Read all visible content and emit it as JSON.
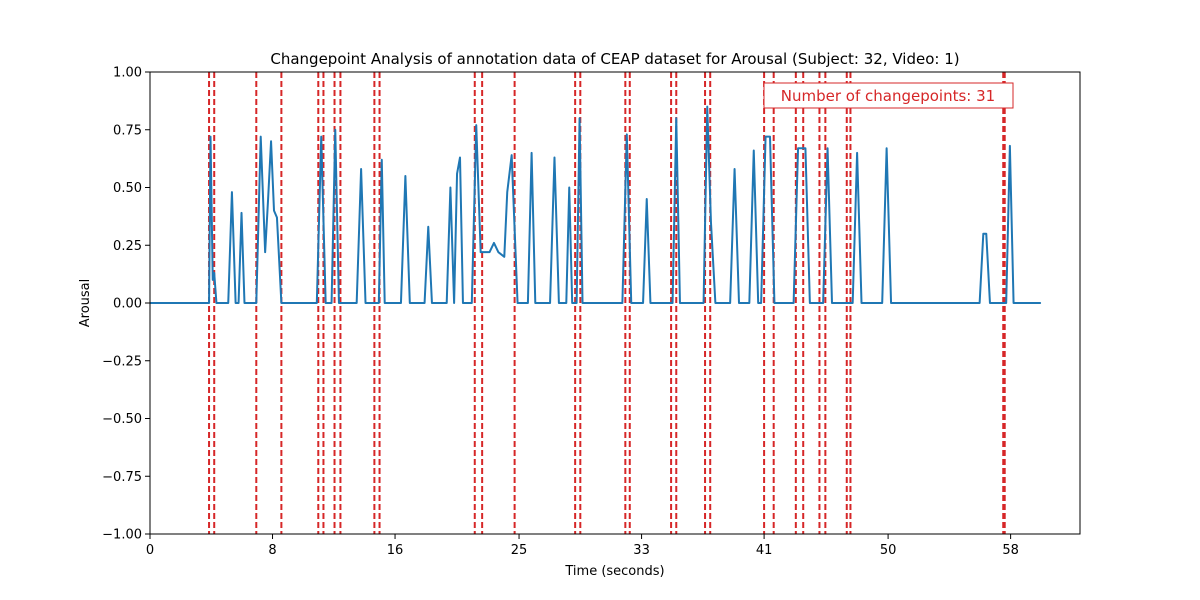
{
  "chart_data": {
    "type": "line",
    "title": "Changepoint Analysis of annotation data of CEAP dataset for Arousal (Subject: 32, Video: 1)",
    "xlabel": "Time (seconds)",
    "ylabel": "Arousal",
    "xlim": [
      0,
      63
    ],
    "ylim": [
      -1.0,
      1.0
    ],
    "x_ticks": [
      0,
      8.3,
      16.6,
      25.0,
      33.3,
      41.6,
      50.0,
      58.3
    ],
    "x_tick_labels": [
      "0",
      "8",
      "16",
      "25",
      "33",
      "41",
      "50",
      "58"
    ],
    "y_ticks": [
      -1.0,
      -0.75,
      -0.5,
      -0.25,
      0.0,
      0.25,
      0.5,
      0.75,
      1.0
    ],
    "y_tick_labels": [
      "−1.00",
      "−0.75",
      "−0.50",
      "−0.25",
      "0.00",
      "0.25",
      "0.50",
      "0.75",
      "1.00"
    ],
    "grid": false,
    "series": [
      {
        "color": "#1f77b4",
        "points": [
          [
            0,
            0
          ],
          [
            4.0,
            0
          ],
          [
            4.1,
            0.72
          ],
          [
            4.25,
            0.1
          ],
          [
            4.35,
            0.13
          ],
          [
            4.5,
            0
          ],
          [
            5.3,
            0
          ],
          [
            5.55,
            0.48
          ],
          [
            5.8,
            0
          ],
          [
            6.0,
            0
          ],
          [
            6.2,
            0.39
          ],
          [
            6.4,
            0
          ],
          [
            7.2,
            0
          ],
          [
            7.5,
            0.72
          ],
          [
            7.8,
            0.22
          ],
          [
            8.0,
            0.45
          ],
          [
            8.2,
            0.7
          ],
          [
            8.4,
            0.4
          ],
          [
            8.6,
            0.37
          ],
          [
            8.9,
            0
          ],
          [
            11.3,
            0
          ],
          [
            11.6,
            0.72
          ],
          [
            11.9,
            0
          ],
          [
            12.3,
            0
          ],
          [
            12.55,
            0.75
          ],
          [
            12.8,
            0
          ],
          [
            14.0,
            0
          ],
          [
            14.3,
            0.58
          ],
          [
            14.6,
            0
          ],
          [
            15.5,
            0
          ],
          [
            15.7,
            0.62
          ],
          [
            15.9,
            0
          ],
          [
            17.0,
            0
          ],
          [
            17.3,
            0.55
          ],
          [
            17.6,
            0
          ],
          [
            18.6,
            0
          ],
          [
            18.85,
            0.33
          ],
          [
            19.1,
            0
          ],
          [
            20.1,
            0
          ],
          [
            20.35,
            0.5
          ],
          [
            20.6,
            0
          ],
          [
            20.8,
            0.56
          ],
          [
            21.0,
            0.63
          ],
          [
            21.2,
            0
          ],
          [
            21.8,
            0
          ],
          [
            22.1,
            0.77
          ],
          [
            22.4,
            0.22
          ],
          [
            23.0,
            0.22
          ],
          [
            23.3,
            0.26
          ],
          [
            23.6,
            0.22
          ],
          [
            24.0,
            0.2
          ],
          [
            24.2,
            0.48
          ],
          [
            24.5,
            0.64
          ],
          [
            24.9,
            0
          ],
          [
            25.6,
            0
          ],
          [
            25.85,
            0.65
          ],
          [
            26.1,
            0
          ],
          [
            27.1,
            0
          ],
          [
            27.4,
            0.63
          ],
          [
            27.7,
            0
          ],
          [
            28.2,
            0
          ],
          [
            28.4,
            0.5
          ],
          [
            28.6,
            0
          ],
          [
            28.9,
            0
          ],
          [
            29.1,
            0.8
          ],
          [
            29.3,
            0
          ],
          [
            32.0,
            0
          ],
          [
            32.3,
            0.73
          ],
          [
            32.6,
            0
          ],
          [
            33.4,
            0
          ],
          [
            33.65,
            0.45
          ],
          [
            33.9,
            0
          ],
          [
            35.4,
            0
          ],
          [
            35.65,
            0.8
          ],
          [
            35.9,
            0
          ],
          [
            37.5,
            0
          ],
          [
            37.75,
            0.85
          ],
          [
            38.0,
            0.35
          ],
          [
            38.3,
            0
          ],
          [
            39.3,
            0
          ],
          [
            39.6,
            0.58
          ],
          [
            39.9,
            0
          ],
          [
            40.6,
            0
          ],
          [
            40.9,
            0.66
          ],
          [
            41.2,
            0
          ],
          [
            41.4,
            0
          ],
          [
            41.7,
            0.72
          ],
          [
            42.0,
            0.72
          ],
          [
            42.3,
            0
          ],
          [
            43.6,
            0
          ],
          [
            43.9,
            0.67
          ],
          [
            44.4,
            0.67
          ],
          [
            44.7,
            0
          ],
          [
            45.6,
            0
          ],
          [
            45.9,
            0.67
          ],
          [
            46.2,
            0
          ],
          [
            47.6,
            0
          ],
          [
            47.9,
            0.65
          ],
          [
            48.2,
            0
          ],
          [
            49.6,
            0
          ],
          [
            49.9,
            0.67
          ],
          [
            50.2,
            0
          ],
          [
            56.2,
            0
          ],
          [
            56.45,
            0.3
          ],
          [
            56.65,
            0.3
          ],
          [
            56.9,
            0
          ],
          [
            58.0,
            0
          ],
          [
            58.25,
            0.68
          ],
          [
            58.5,
            0
          ],
          [
            60.3,
            0
          ]
        ]
      }
    ],
    "changepoints": [
      4.0,
      4.35,
      7.2,
      8.9,
      11.4,
      11.75,
      12.5,
      12.9,
      15.2,
      15.55,
      22.0,
      22.5,
      24.7,
      28.8,
      29.15,
      32.2,
      32.5,
      35.3,
      35.65,
      37.6,
      37.95,
      41.6,
      42.25,
      43.75,
      44.25,
      45.35,
      45.75,
      47.2,
      47.45,
      57.8,
      57.9
    ],
    "changepoint_color": "#d62728",
    "annotation": {
      "text": "Number of changepoints: 31",
      "color": "#d62728"
    }
  }
}
